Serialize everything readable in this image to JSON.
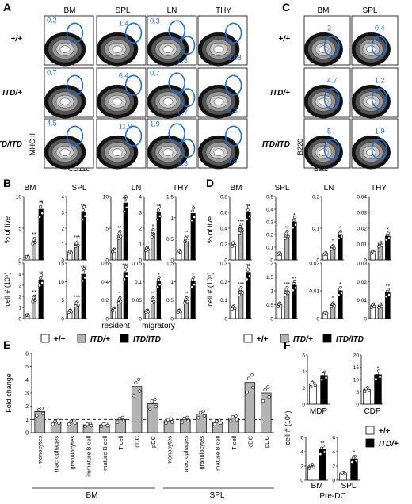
{
  "panels": {
    "A": {
      "letter": "A",
      "cols": [
        "BM",
        "SPL",
        "LN",
        "THY"
      ],
      "rows": [
        "+/+",
        "ITD/+",
        "ITD/ITD"
      ],
      "xlabel": "CD11c",
      "ylabel": "MHC II",
      "numbers": [
        [
          "0.2",
          "1.4",
          "0.3",
          "0.08"
        ],
        [
          "0.7",
          "6.4",
          "0.7",
          "0.3"
        ],
        [
          "4.5",
          "11.9",
          "1.9",
          "0.8"
        ]
      ],
      "ln_extra": [
        "0.3",
        "0.7",
        "4.3"
      ]
    },
    "C": {
      "letter": "C",
      "cols": [
        "BM",
        "SPL"
      ],
      "rows": [
        "+/+",
        "ITD/+",
        "ITD/ITD"
      ],
      "xlabel": "Bst2",
      "ylabel": "B220",
      "numbers": [
        [
          "2",
          "0.4"
        ],
        [
          "4.7",
          "1.2"
        ],
        [
          "5",
          "1.9"
        ]
      ]
    },
    "B": {
      "letter": "B",
      "cols": [
        "BM",
        "SPL",
        "LN",
        "THY"
      ],
      "ylabel_top": "% of live",
      "ylabel_bottom": "cell # (10⁶)",
      "resident_label": "resident",
      "migratory_label": "migratory"
    },
    "D": {
      "letter": "D",
      "cols": [
        "BM",
        "SPL",
        "LN",
        "THY"
      ],
      "ylabel_top": "% of live",
      "ylabel_bottom": "cell # (10⁶)"
    },
    "E": {
      "letter": "E",
      "ylabel": "Fold change",
      "group_bm": "BM",
      "group_spl": "SPL"
    },
    "F": {
      "letter": "F",
      "ylabel": "cell # (10⁶)",
      "top_labels": [
        "MDP",
        "CDP"
      ],
      "bottom_labels": [
        "BM",
        "SPL"
      ],
      "bottom_group": "Pre-DC"
    }
  },
  "legend_main": [
    "+/+",
    "ITD/+",
    "ITD/ITD"
  ],
  "legend_f": [
    "+/+",
    "ITD/+"
  ],
  "colors": {
    "wt": "#ffffff",
    "het": "#b3b3b3",
    "hom": "#000000",
    "gate": "#1f6fd6"
  },
  "chart_data": [
    {
      "type": "bar",
      "panel": "B",
      "section": "% of live",
      "series_names": [
        "+/+",
        "ITD/+",
        "ITD/ITD"
      ],
      "charts": [
        {
          "title": "BM",
          "ylim": [
            0,
            10
          ],
          "ticks": [
            0,
            5,
            10
          ],
          "values": [
            0.5,
            3,
            8
          ],
          "sig": [
            "",
            "**",
            "**"
          ]
        },
        {
          "title": "SPL",
          "ylim": [
            0,
            4
          ],
          "ticks": [
            0,
            1,
            2,
            3,
            4
          ],
          "values": [
            0.5,
            1,
            3
          ],
          "sig": [
            "",
            "***",
            "***"
          ]
        },
        {
          "title": "LN",
          "ylim": [
            0,
            10
          ],
          "ticks": [
            0,
            5,
            10
          ],
          "values": [
            1.5,
            4,
            9
          ],
          "sig": [
            "",
            "**",
            "***"
          ],
          "group": "resident"
        },
        {
          "title": "LN",
          "ylim": [
            0,
            4
          ],
          "ticks": [
            0,
            1,
            2,
            3,
            4
          ],
          "values": [
            0.7,
            1.7,
            3
          ],
          "sig": [
            "",
            "*",
            "**"
          ],
          "group": "migratory"
        },
        {
          "title": "THY",
          "ylim": [
            0,
            1.5
          ],
          "ticks": [
            0,
            0.5,
            1,
            1.5
          ],
          "values": [
            0.2,
            0.5,
            1.1
          ],
          "sig": [
            "",
            "**",
            "*"
          ]
        }
      ]
    },
    {
      "type": "bar",
      "panel": "B",
      "section": "cell # (10⁶)",
      "series_names": [
        "+/+",
        "ITD/+",
        "ITD/ITD"
      ],
      "charts": [
        {
          "title": "BM",
          "ylim": [
            0,
            5
          ],
          "ticks": [
            0,
            1,
            2,
            3,
            4,
            5
          ],
          "values": [
            0.3,
            1.8,
            3.5
          ],
          "sig": [
            "",
            "**",
            "**"
          ]
        },
        {
          "title": "SPL",
          "ylim": [
            0,
            15
          ],
          "ticks": [
            0,
            5,
            10,
            15
          ],
          "values": [
            2,
            4,
            12
          ],
          "sig": [
            "",
            "***",
            "***"
          ]
        },
        {
          "title": "LN",
          "ylim": [
            0,
            0.6
          ],
          "ticks": [
            0,
            0.2,
            0.4,
            0.6
          ],
          "values": [
            0.1,
            0.2,
            0.5
          ],
          "sig": [
            "",
            "*",
            "***"
          ],
          "group": "resident"
        },
        {
          "title": "LN",
          "ylim": [
            0,
            0.15
          ],
          "ticks": [
            0,
            0.05,
            0.1,
            0.15
          ],
          "values": [
            0.02,
            0.05,
            0.1
          ],
          "sig": [
            "",
            "**",
            "*"
          ],
          "group": "migratory"
        },
        {
          "title": "THY",
          "ylim": [
            0,
            1.5
          ],
          "ticks": [
            0,
            0.5,
            1,
            1.5
          ],
          "values": [
            0.2,
            0.5,
            1
          ],
          "sig": [
            "",
            "**",
            "*"
          ]
        }
      ]
    },
    {
      "type": "bar",
      "panel": "D",
      "section": "% of live",
      "series_names": [
        "+/+",
        "ITD/+",
        "ITD/ITD"
      ],
      "charts": [
        {
          "title": "BM",
          "ylim": [
            0,
            0.8
          ],
          "ticks": [
            0,
            0.2,
            0.4,
            0.6,
            0.8
          ],
          "values": [
            0.2,
            0.4,
            0.6
          ],
          "sig": [
            "",
            "***",
            "**"
          ]
        },
        {
          "title": "SPL",
          "ylim": [
            0,
            0.5
          ],
          "ticks": [
            0,
            0.1,
            0.2,
            0.3,
            0.4,
            0.5
          ],
          "values": [
            0.05,
            0.2,
            0.3
          ],
          "sig": [
            "",
            "**",
            "*"
          ]
        },
        {
          "title": "LN",
          "ylim": [
            0,
            0.2
          ],
          "ticks": [
            0,
            0.1,
            0.2
          ],
          "values": [
            0.02,
            0.04,
            0.08
          ],
          "sig": [
            "",
            "*",
            "*"
          ]
        },
        {
          "title": "THY",
          "ylim": [
            0,
            0.04
          ],
          "ticks": [
            0,
            0.01,
            0.02,
            0.03,
            0.04
          ],
          "values": [
            0.005,
            0.01,
            0.015
          ],
          "sig": [
            "",
            "",
            "*"
          ]
        }
      ]
    },
    {
      "type": "bar",
      "panel": "D",
      "section": "cell # (10⁶)",
      "series_names": [
        "+/+",
        "ITD/+",
        "ITD/ITD"
      ],
      "charts": [
        {
          "title": "BM",
          "ylim": [
            0,
            0.3
          ],
          "ticks": [
            0,
            0.1,
            0.2,
            0.3
          ],
          "values": [
            0.06,
            0.15,
            0.25
          ],
          "sig": [
            "",
            "***",
            "**"
          ]
        },
        {
          "title": "SPL",
          "ylim": [
            0,
            2
          ],
          "ticks": [
            0,
            0.5,
            1,
            1.5,
            2
          ],
          "values": [
            0.5,
            1,
            1.2
          ],
          "sig": [
            "",
            "***",
            "**"
          ]
        },
        {
          "title": "LN",
          "ylim": [
            0,
            0.02
          ],
          "ticks": [
            0,
            0.01,
            0.02
          ],
          "values": [
            0.002,
            0.005,
            0.01
          ],
          "sig": [
            "",
            "*",
            "*"
          ]
        },
        {
          "title": "THY",
          "ylim": [
            0,
            0.03
          ],
          "ticks": [
            0,
            0.01,
            0.02,
            0.03
          ],
          "values": [
            0.007,
            0.007,
            0.014
          ],
          "sig": [
            "",
            "",
            "**"
          ]
        }
      ]
    },
    {
      "type": "bar",
      "panel": "E",
      "ylim": [
        0,
        6
      ],
      "ticks": [
        0,
        1,
        2,
        3,
        4,
        5,
        6
      ],
      "reference_line": 1,
      "groups": [
        {
          "name": "BM",
          "categories": [
            "monocytes",
            "macrophages",
            "granulocytes",
            "immature B cell",
            "mature B cell",
            "T cell",
            "cDC",
            "pDC"
          ],
          "values": [
            1.6,
            0.8,
            0.8,
            0.6,
            0.6,
            1.0,
            3.5,
            2.2
          ]
        },
        {
          "name": "SPL",
          "categories": [
            "monocytes",
            "macrophages",
            "granulocytes",
            "mature B cell",
            "T cell",
            "cDC",
            "pDC"
          ],
          "values": [
            0.9,
            1.0,
            1.4,
            0.8,
            1.1,
            3.8,
            3.0
          ]
        }
      ]
    },
    {
      "type": "bar",
      "panel": "F",
      "series_names": [
        "+/+",
        "ITD/+"
      ],
      "charts": [
        {
          "title": "MDP",
          "ylim": [
            0,
            6
          ],
          "ticks": [
            0,
            2,
            4,
            6
          ],
          "values": [
            2.5,
            3.5
          ],
          "sig": [
            "",
            ""
          ]
        },
        {
          "title": "CDP",
          "ylim": [
            0,
            20
          ],
          "ticks": [
            0,
            5,
            10,
            15,
            20
          ],
          "values": [
            6,
            12
          ],
          "sig": [
            "",
            "*"
          ]
        },
        {
          "title": "Pre-DC BM",
          "ylim": [
            0,
            6
          ],
          "ticks": [
            0,
            2,
            4,
            6
          ],
          "values": [
            2,
            4.3
          ],
          "sig": [
            "",
            "**"
          ]
        },
        {
          "title": "Pre-DC SPL",
          "ylim": [
            0,
            6
          ],
          "ticks": [
            0,
            2,
            4,
            6
          ],
          "values": [
            1,
            3
          ],
          "sig": [
            "",
            "*"
          ]
        }
      ]
    }
  ]
}
